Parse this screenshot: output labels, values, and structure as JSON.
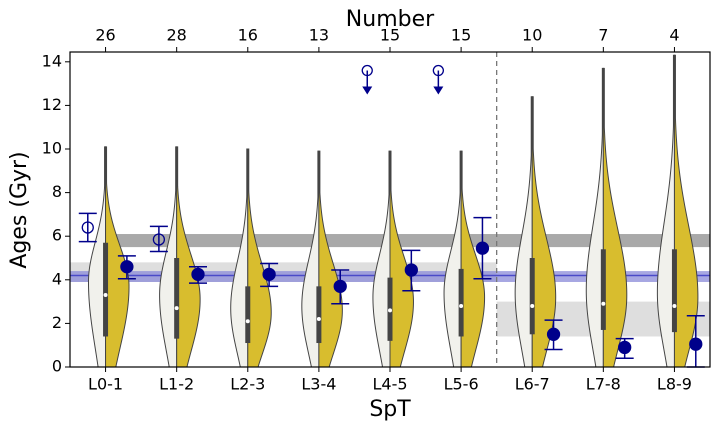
{
  "chart_data": {
    "type": "violin",
    "title": "Number",
    "xlabel": "SpT",
    "ylabel": "Ages (Gyr)",
    "categories": [
      "L0-1",
      "L1-2",
      "L2-3",
      "L3-4",
      "L4-5",
      "L5-6",
      "L6-7",
      "L7-8",
      "L8-9"
    ],
    "numbers": [
      26,
      28,
      16,
      13,
      15,
      15,
      10,
      7,
      4
    ],
    "xlim": [
      -0.5,
      8.5
    ],
    "ylim": [
      0,
      14.45
    ],
    "yticks": [
      0,
      2,
      4,
      6,
      8,
      10,
      12,
      14
    ],
    "violins": {
      "left_color": "#f1f1ec",
      "right_color": "#d8bd2e",
      "top": [
        10.1,
        10.1,
        10.0,
        9.9,
        9.9,
        9.9,
        12.4,
        13.7,
        14.3
      ],
      "q1": [
        1.4,
        1.3,
        1.1,
        1.1,
        1.2,
        1.4,
        1.5,
        1.7,
        1.6
      ],
      "median": [
        3.3,
        2.7,
        2.1,
        2.2,
        2.6,
        2.8,
        2.8,
        2.9,
        2.8
      ],
      "q3": [
        5.7,
        5.0,
        3.7,
        3.7,
        4.1,
        4.5,
        5.0,
        5.4,
        5.4
      ]
    },
    "points": [
      {
        "style": "filled",
        "color": "#00008b",
        "offset": 0.3,
        "values": [
          4.6,
          4.25,
          4.25,
          3.7,
          4.45,
          5.45,
          1.5,
          0.9,
          1.05
        ],
        "lower": [
          4.05,
          3.85,
          3.7,
          2.9,
          3.5,
          4.05,
          0.8,
          0.4,
          0
        ],
        "upper": [
          5.1,
          4.6,
          4.75,
          4.45,
          5.35,
          6.85,
          2.15,
          1.3,
          2.35
        ]
      },
      {
        "style": "open",
        "color": "#00008b",
        "offset": -0.25,
        "values": [
          6.4,
          5.85,
          null,
          null,
          null,
          null,
          null,
          null,
          null
        ],
        "lower": [
          5.75,
          5.3,
          null,
          null,
          null,
          null,
          null,
          null,
          null
        ],
        "upper": [
          7.05,
          6.45,
          null,
          null,
          null,
          null,
          null,
          null,
          null
        ]
      },
      {
        "style": "upper_limit",
        "color": "#00008b",
        "offset": -0.32,
        "values": [
          null,
          null,
          null,
          null,
          13.6,
          13.6,
          null,
          null,
          null
        ]
      }
    ],
    "bands": [
      {
        "range": [
          3.9,
          4.8
        ],
        "span": [
          -0.5,
          5.5
        ],
        "color": "#d3d3d3"
      },
      {
        "range": [
          1.4,
          3.0
        ],
        "span": [
          5.5,
          8.5
        ],
        "color": "#d3d3d3"
      },
      {
        "range": [
          5.5,
          6.1
        ],
        "span": [
          -0.12,
          8.5
        ],
        "color": "#8c8c8c"
      },
      {
        "range": [
          3.9,
          4.4
        ],
        "span": [
          -0.5,
          8.5
        ],
        "color": "#8a8ad8"
      }
    ],
    "hlines": [
      {
        "y": 4.2,
        "color": "#4a4ac8"
      }
    ],
    "vlines": [
      {
        "x": 5.5,
        "color": "#777777"
      }
    ]
  }
}
